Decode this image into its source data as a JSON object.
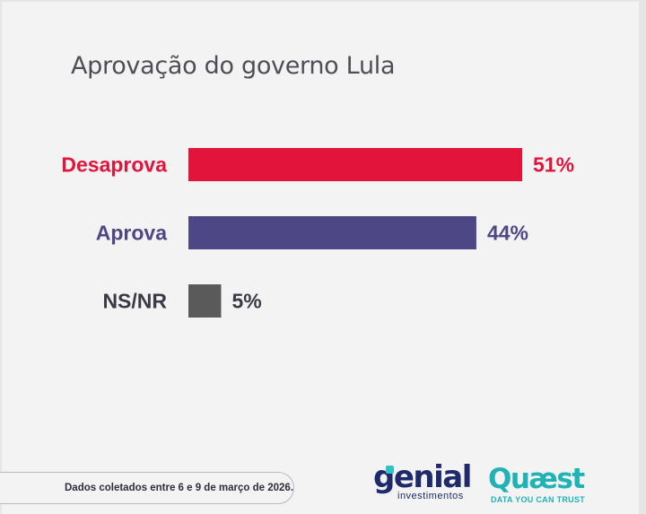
{
  "chart_data": {
    "type": "bar",
    "orientation": "horizontal",
    "title": "Aprovação do governo Lula",
    "categories": [
      "Desaprova",
      "Aprova",
      "NS/NR"
    ],
    "values": [
      51,
      44,
      5
    ],
    "value_labels": [
      "51%",
      "44%",
      "5%"
    ],
    "colors": [
      "#e3143c",
      "#4e4785",
      "#5a5a5a"
    ],
    "xlim": [
      0,
      51
    ],
    "grid": false,
    "legend": "none"
  },
  "footer": {
    "note": "Dados coletados entre 6 e 9 de março de 2026."
  },
  "logos": {
    "genial": {
      "word": "genial",
      "sub": "investimentos"
    },
    "quaest": {
      "word": "Quæst",
      "sub": "DATA YOU CAN TRUST"
    }
  }
}
